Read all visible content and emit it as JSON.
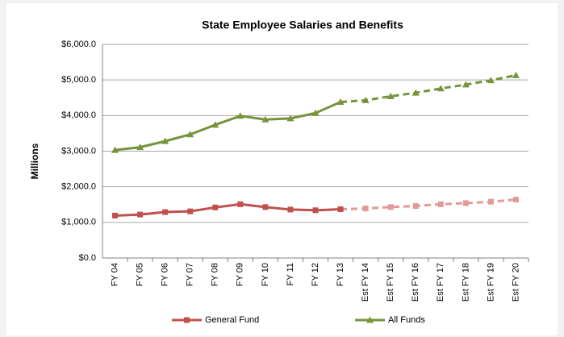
{
  "chart_data": {
    "type": "line",
    "title": "State Employee Salaries and Benefits",
    "y_label": "Millions",
    "categories": [
      "FY 04",
      "FY 05",
      "FY 06",
      "FY 07",
      "FY 08",
      "FY 09",
      "FY 10",
      "FY 11",
      "FY 12",
      "FY 13",
      "Est FY 14",
      "Est FY 15",
      "Est FY 16",
      "Est FY 17",
      "Est FY 18",
      "Est FY 19",
      "Est FY 20"
    ],
    "point_styles": [
      "solid",
      "solid",
      "solid",
      "solid",
      "solid",
      "solid",
      "solid",
      "solid",
      "solid",
      "solid",
      "dashed",
      "dashed",
      "dashed",
      "dashed",
      "dashed",
      "dashed",
      "dashed"
    ],
    "series": [
      {
        "name": "General Fund",
        "color": "#c0504d",
        "dashed_color": "#e09a98",
        "marker": "square",
        "values": [
          1190,
          1220,
          1290,
          1310,
          1420,
          1510,
          1430,
          1360,
          1340,
          1370,
          1390,
          1430,
          1460,
          1510,
          1540,
          1580,
          1640
        ]
      },
      {
        "name": "All Funds",
        "color": "#77933c",
        "dashed_color": "#77933c",
        "marker": "triangle",
        "values": [
          3030,
          3110,
          3280,
          3470,
          3740,
          3990,
          3890,
          3920,
          4070,
          4380,
          4430,
          4540,
          4640,
          4760,
          4870,
          4990,
          5130
        ]
      }
    ],
    "ylim": [
      0,
      6000
    ],
    "yticks": [
      {
        "value": 0,
        "label": "$0.0"
      },
      {
        "value": 1000,
        "label": "$1,000.0"
      },
      {
        "value": 2000,
        "label": "$2,000.0"
      },
      {
        "value": 3000,
        "label": "$3,000.0"
      },
      {
        "value": 4000,
        "label": "$4,000.0"
      },
      {
        "value": 5000,
        "label": "$5,000.0"
      },
      {
        "value": 6000,
        "label": "$6,000.0"
      }
    ],
    "grid": true,
    "legend": "bottom"
  }
}
